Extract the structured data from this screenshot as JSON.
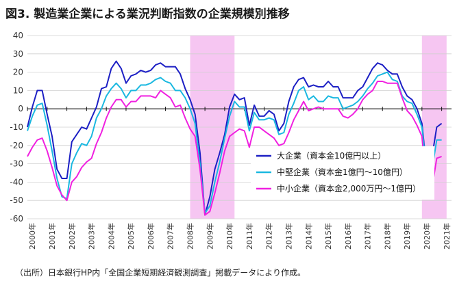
{
  "title": "図3. 製造業企業による業況判断指数の企業規模別推移",
  "source": "（出所）日本銀行HP内「全国企業短期経済観測調査」掲載データにより作成。",
  "chart_data": {
    "type": "line",
    "title": "図3. 製造業企業による業況判断指数の企業規模別推移",
    "ylim": [
      -60,
      40
    ],
    "yticks": [
      40,
      30,
      20,
      10,
      0,
      -10,
      -20,
      -30,
      -40,
      -50,
      -60
    ],
    "xlim": [
      2000.0,
      2021.5
    ],
    "xtick_labels": [
      "2000年",
      "2001年",
      "2002年",
      "2003年",
      "2004年",
      "2005年",
      "2006年",
      "2007年",
      "2008年",
      "2009年",
      "2010年",
      "2011年",
      "2012年",
      "2013年",
      "2014年",
      "2015年",
      "2016年",
      "2017年",
      "2018年",
      "2019年",
      "2020年",
      "2021年"
    ],
    "grid": true,
    "legend_position": "right-middle",
    "shaded_periods": [
      [
        2008.25,
        2010.5
      ],
      [
        2020.0,
        2021.25
      ]
    ],
    "shade_color": "#f6c6f2",
    "series": [
      {
        "name": "大企業（資本金10億円以上）",
        "color": "#1c1fc4",
        "points": [
          [
            2000.0,
            -10
          ],
          [
            2000.25,
            1
          ],
          [
            2000.5,
            10
          ],
          [
            2000.75,
            10
          ],
          [
            2001.0,
            -3
          ],
          [
            2001.25,
            -15
          ],
          [
            2001.5,
            -33
          ],
          [
            2001.75,
            -38
          ],
          [
            2002.0,
            -38
          ],
          [
            2002.25,
            -18
          ],
          [
            2002.5,
            -14
          ],
          [
            2002.75,
            -10
          ],
          [
            2003.0,
            -11
          ],
          [
            2003.25,
            -5
          ],
          [
            2003.5,
            1
          ],
          [
            2003.75,
            11
          ],
          [
            2004.0,
            12
          ],
          [
            2004.25,
            22
          ],
          [
            2004.5,
            26
          ],
          [
            2004.75,
            22
          ],
          [
            2005.0,
            14
          ],
          [
            2005.25,
            18
          ],
          [
            2005.5,
            19
          ],
          [
            2005.75,
            21
          ],
          [
            2006.0,
            20
          ],
          [
            2006.25,
            21
          ],
          [
            2006.5,
            24
          ],
          [
            2006.75,
            25
          ],
          [
            2007.0,
            23
          ],
          [
            2007.25,
            23
          ],
          [
            2007.5,
            23
          ],
          [
            2007.75,
            19
          ],
          [
            2008.0,
            11
          ],
          [
            2008.25,
            5
          ],
          [
            2008.5,
            -3
          ],
          [
            2008.75,
            -24
          ],
          [
            2009.0,
            -58
          ],
          [
            2009.25,
            -48
          ],
          [
            2009.5,
            -33
          ],
          [
            2009.75,
            -24
          ],
          [
            2010.0,
            -14
          ],
          [
            2010.25,
            1
          ],
          [
            2010.5,
            8
          ],
          [
            2010.75,
            5
          ],
          [
            2011.0,
            6
          ],
          [
            2011.25,
            -9
          ],
          [
            2011.5,
            2
          ],
          [
            2011.75,
            -4
          ],
          [
            2012.0,
            -4
          ],
          [
            2012.25,
            -1
          ],
          [
            2012.5,
            -3
          ],
          [
            2012.75,
            -12
          ],
          [
            2013.0,
            -8
          ],
          [
            2013.25,
            4
          ],
          [
            2013.5,
            12
          ],
          [
            2013.75,
            16
          ],
          [
            2014.0,
            17
          ],
          [
            2014.25,
            12
          ],
          [
            2014.5,
            13
          ],
          [
            2014.75,
            12
          ],
          [
            2015.0,
            12
          ],
          [
            2015.25,
            15
          ],
          [
            2015.5,
            12
          ],
          [
            2015.75,
            12
          ],
          [
            2016.0,
            6
          ],
          [
            2016.25,
            6
          ],
          [
            2016.5,
            6
          ],
          [
            2016.75,
            10
          ],
          [
            2017.0,
            12
          ],
          [
            2017.25,
            17
          ],
          [
            2017.5,
            22
          ],
          [
            2017.75,
            25
          ],
          [
            2018.0,
            24
          ],
          [
            2018.25,
            21
          ],
          [
            2018.5,
            19
          ],
          [
            2018.75,
            19
          ],
          [
            2019.0,
            12
          ],
          [
            2019.25,
            7
          ],
          [
            2019.5,
            5
          ],
          [
            2019.75,
            0
          ],
          [
            2020.0,
            -8
          ],
          [
            2020.25,
            -34
          ],
          [
            2020.5,
            -27
          ],
          [
            2020.75,
            -10
          ],
          [
            2021.0,
            -8
          ]
        ]
      },
      {
        "name": "中堅企業（資本金1億円～10億円）",
        "color": "#1ab8e0",
        "points": [
          [
            2000.0,
            -12
          ],
          [
            2000.25,
            -4
          ],
          [
            2000.5,
            2
          ],
          [
            2000.75,
            3
          ],
          [
            2001.0,
            -9
          ],
          [
            2001.25,
            -23
          ],
          [
            2001.5,
            -38
          ],
          [
            2001.75,
            -48
          ],
          [
            2002.0,
            -49
          ],
          [
            2002.25,
            -30
          ],
          [
            2002.5,
            -24
          ],
          [
            2002.75,
            -19
          ],
          [
            2003.0,
            -20
          ],
          [
            2003.25,
            -15
          ],
          [
            2003.5,
            -5
          ],
          [
            2003.75,
            0
          ],
          [
            2004.0,
            7
          ],
          [
            2004.25,
            11
          ],
          [
            2004.5,
            14
          ],
          [
            2004.75,
            11
          ],
          [
            2005.0,
            6
          ],
          [
            2005.25,
            10
          ],
          [
            2005.5,
            10
          ],
          [
            2005.75,
            13
          ],
          [
            2006.0,
            13
          ],
          [
            2006.25,
            14
          ],
          [
            2006.5,
            16
          ],
          [
            2006.75,
            17
          ],
          [
            2007.0,
            15
          ],
          [
            2007.25,
            14
          ],
          [
            2007.5,
            10
          ],
          [
            2007.75,
            10
          ],
          [
            2008.0,
            6
          ],
          [
            2008.25,
            0
          ],
          [
            2008.5,
            -8
          ],
          [
            2008.75,
            -30
          ],
          [
            2009.0,
            -57
          ],
          [
            2009.25,
            -53
          ],
          [
            2009.5,
            -40
          ],
          [
            2009.75,
            -29
          ],
          [
            2010.0,
            -16
          ],
          [
            2010.25,
            -4
          ],
          [
            2010.5,
            4
          ],
          [
            2010.75,
            1
          ],
          [
            2011.0,
            1
          ],
          [
            2011.25,
            -12
          ],
          [
            2011.5,
            -2
          ],
          [
            2011.75,
            -6
          ],
          [
            2012.0,
            -6
          ],
          [
            2012.25,
            -5
          ],
          [
            2012.5,
            -6
          ],
          [
            2012.75,
            -14
          ],
          [
            2013.0,
            -13
          ],
          [
            2013.25,
            -3
          ],
          [
            2013.5,
            3
          ],
          [
            2013.75,
            10
          ],
          [
            2014.0,
            12
          ],
          [
            2014.25,
            5
          ],
          [
            2014.5,
            7
          ],
          [
            2014.75,
            4
          ],
          [
            2015.0,
            4
          ],
          [
            2015.25,
            7
          ],
          [
            2015.5,
            6
          ],
          [
            2015.75,
            6
          ],
          [
            2016.0,
            0
          ],
          [
            2016.25,
            1
          ],
          [
            2016.5,
            2
          ],
          [
            2016.75,
            4
          ],
          [
            2017.0,
            7
          ],
          [
            2017.25,
            11
          ],
          [
            2017.5,
            14
          ],
          [
            2017.75,
            18
          ],
          [
            2018.0,
            19
          ],
          [
            2018.25,
            20
          ],
          [
            2018.5,
            16
          ],
          [
            2018.75,
            15
          ],
          [
            2019.0,
            7
          ],
          [
            2019.25,
            4
          ],
          [
            2019.5,
            3
          ],
          [
            2019.75,
            -3
          ],
          [
            2020.0,
            -10
          ],
          [
            2020.25,
            -35
          ],
          [
            2020.5,
            -34
          ],
          [
            2020.75,
            -17
          ],
          [
            2021.0,
            -17
          ]
        ]
      },
      {
        "name": "中小企業（資本金2,000万円～1億円）",
        "color": "#f020e0",
        "points": [
          [
            2000.0,
            -26
          ],
          [
            2000.25,
            -21
          ],
          [
            2000.5,
            -17
          ],
          [
            2000.75,
            -16
          ],
          [
            2001.0,
            -23
          ],
          [
            2001.25,
            -32
          ],
          [
            2001.5,
            -42
          ],
          [
            2001.75,
            -47
          ],
          [
            2002.0,
            -50
          ],
          [
            2002.25,
            -40
          ],
          [
            2002.5,
            -37
          ],
          [
            2002.75,
            -32
          ],
          [
            2003.0,
            -29
          ],
          [
            2003.25,
            -27
          ],
          [
            2003.5,
            -19
          ],
          [
            2003.75,
            -13
          ],
          [
            2004.0,
            -5
          ],
          [
            2004.25,
            1
          ],
          [
            2004.5,
            5
          ],
          [
            2004.75,
            5
          ],
          [
            2005.0,
            1
          ],
          [
            2005.25,
            4
          ],
          [
            2005.5,
            4
          ],
          [
            2005.75,
            7
          ],
          [
            2006.0,
            7
          ],
          [
            2006.25,
            7
          ],
          [
            2006.5,
            6
          ],
          [
            2006.75,
            10
          ],
          [
            2007.0,
            8
          ],
          [
            2007.25,
            6
          ],
          [
            2007.5,
            1
          ],
          [
            2007.75,
            2
          ],
          [
            2008.0,
            -5
          ],
          [
            2008.25,
            -11
          ],
          [
            2008.5,
            -15
          ],
          [
            2008.75,
            -33
          ],
          [
            2009.0,
            -58
          ],
          [
            2009.25,
            -56
          ],
          [
            2009.5,
            -46
          ],
          [
            2009.75,
            -35
          ],
          [
            2010.0,
            -23
          ],
          [
            2010.25,
            -15
          ],
          [
            2010.5,
            -13
          ],
          [
            2010.75,
            -11
          ],
          [
            2011.0,
            -12
          ],
          [
            2011.25,
            -21
          ],
          [
            2011.5,
            -10
          ],
          [
            2011.75,
            -10
          ],
          [
            2012.0,
            -12
          ],
          [
            2012.25,
            -14
          ],
          [
            2012.5,
            -16
          ],
          [
            2012.75,
            -20
          ],
          [
            2013.0,
            -19
          ],
          [
            2013.25,
            -13
          ],
          [
            2013.5,
            -6
          ],
          [
            2013.75,
            -1
          ],
          [
            2014.0,
            4
          ],
          [
            2014.25,
            -1
          ],
          [
            2014.5,
            0
          ],
          [
            2014.75,
            1
          ],
          [
            2015.0,
            0
          ],
          [
            2015.25,
            0
          ],
          [
            2015.5,
            0
          ],
          [
            2015.75,
            0
          ],
          [
            2016.0,
            -4
          ],
          [
            2016.25,
            -5
          ],
          [
            2016.5,
            -3
          ],
          [
            2016.75,
            0
          ],
          [
            2017.0,
            5
          ],
          [
            2017.25,
            8
          ],
          [
            2017.5,
            10
          ],
          [
            2017.75,
            15
          ],
          [
            2018.0,
            15
          ],
          [
            2018.25,
            14
          ],
          [
            2018.5,
            14
          ],
          [
            2018.75,
            14
          ],
          [
            2019.0,
            6
          ],
          [
            2019.25,
            -1
          ],
          [
            2019.5,
            -4
          ],
          [
            2019.75,
            -9
          ],
          [
            2020.0,
            -15
          ],
          [
            2020.25,
            -45
          ],
          [
            2020.5,
            -44
          ],
          [
            2020.75,
            -27
          ],
          [
            2021.0,
            -26
          ]
        ]
      }
    ]
  }
}
